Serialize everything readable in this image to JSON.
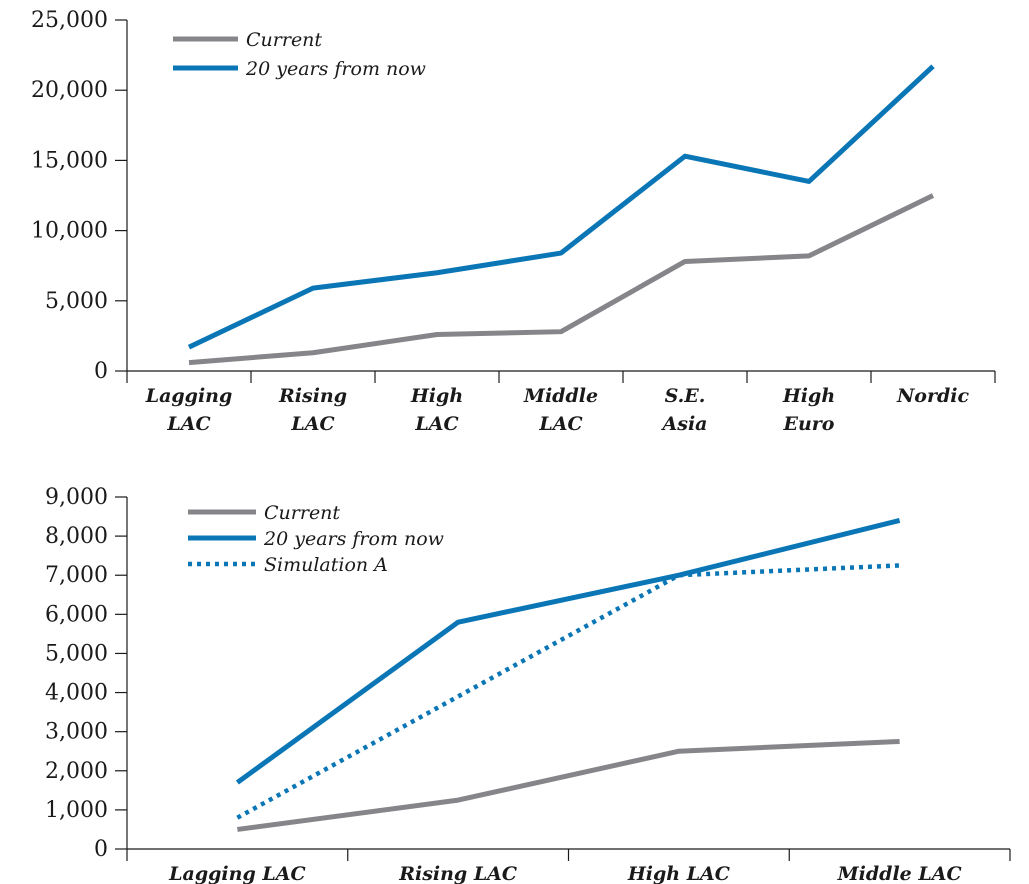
{
  "chart_data": [
    {
      "type": "line",
      "categories": [
        "Lagging\nLAC",
        "Rising\nLAC",
        "High\nLAC",
        "Middle\nLAC",
        "S.E.\nAsia",
        "High\nEuro",
        "Nordic"
      ],
      "series": [
        {
          "name": "Current",
          "values": [
            600,
            1300,
            2600,
            2800,
            7800,
            8200,
            12500
          ],
          "color": "#86858a",
          "dash": "solid"
        },
        {
          "name": "20 years from now",
          "values": [
            1700,
            5900,
            7000,
            8400,
            15300,
            13500,
            21700
          ],
          "color": "#0a76b6",
          "dash": "solid"
        }
      ],
      "yticks": [
        "0",
        "5,000",
        "10,000",
        "15,000",
        "20,000",
        "25,000"
      ],
      "ytick_values": [
        0,
        5000,
        10000,
        15000,
        20000,
        25000
      ],
      "ylim": [
        0,
        25000
      ],
      "title": "",
      "xlabel": "",
      "ylabel": "",
      "legend": "top-left",
      "grid": false
    },
    {
      "type": "line",
      "categories": [
        "Lagging LAC",
        "Rising LAC",
        "High LAC",
        "Middle LAC"
      ],
      "series": [
        {
          "name": "Current",
          "values": [
            500,
            1250,
            2500,
            2750
          ],
          "color": "#86858a",
          "dash": "solid"
        },
        {
          "name": "20 years from now",
          "values": [
            1700,
            5800,
            7000,
            8400
          ],
          "color": "#0a76b6",
          "dash": "solid"
        },
        {
          "name": "Simulation A",
          "values": [
            800,
            3900,
            7000,
            7250
          ],
          "color": "#0a76b6",
          "dash": "dotted"
        }
      ],
      "yticks": [
        "0",
        "1,000",
        "2,000",
        "3,000",
        "4,000",
        "5,000",
        "6,000",
        "7,000",
        "8,000",
        "9,000"
      ],
      "ytick_values": [
        0,
        1000,
        2000,
        3000,
        4000,
        5000,
        6000,
        7000,
        8000,
        9000
      ],
      "ylim": [
        0,
        9000
      ],
      "title": "",
      "xlabel": "",
      "ylabel": "",
      "legend": "top-left",
      "grid": false
    }
  ]
}
